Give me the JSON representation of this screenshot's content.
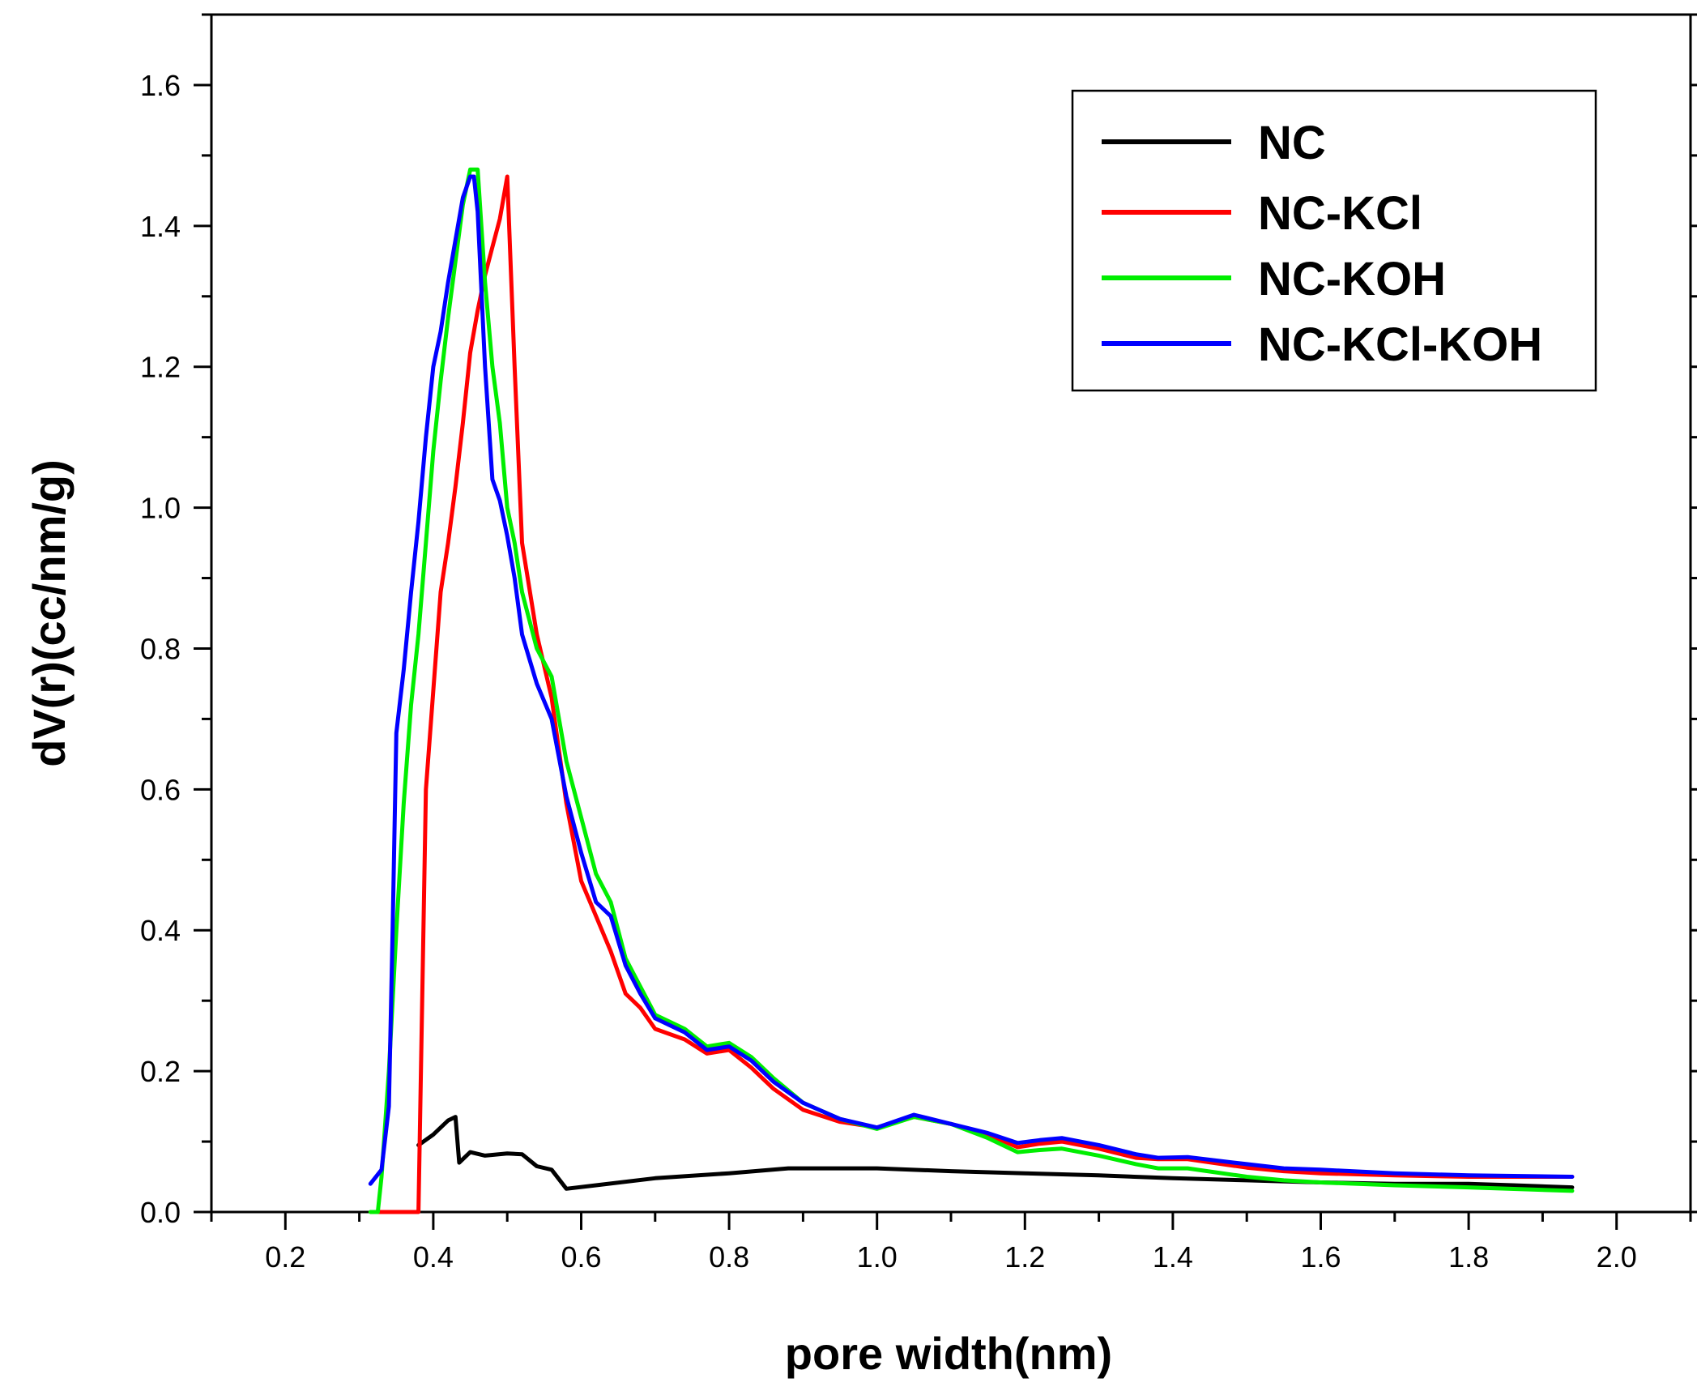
{
  "chart_data": {
    "type": "line",
    "title": "",
    "xlabel": "pore width(nm)",
    "ylabel": "dV(r)(cc/nm/g)",
    "xlim": [
      0.1,
      2.1
    ],
    "ylim": [
      0.0,
      1.7
    ],
    "x_ticks": [
      "0.2",
      "0.4",
      "0.6",
      "0.8",
      "1.0",
      "1.2",
      "1.4",
      "1.6",
      "1.8",
      "2.0"
    ],
    "y_ticks": [
      "0.0",
      "0.2",
      "0.4",
      "0.6",
      "0.8",
      "1.0",
      "1.2",
      "1.4",
      "1.6"
    ],
    "grid": false,
    "legend_position": "top-right",
    "series": [
      {
        "name": "NC",
        "color": "#000000",
        "points": [
          [
            0.38,
            0.095
          ],
          [
            0.4,
            0.11
          ],
          [
            0.42,
            0.13
          ],
          [
            0.43,
            0.135
          ],
          [
            0.435,
            0.07
          ],
          [
            0.45,
            0.085
          ],
          [
            0.47,
            0.08
          ],
          [
            0.5,
            0.083
          ],
          [
            0.52,
            0.082
          ],
          [
            0.54,
            0.065
          ],
          [
            0.56,
            0.06
          ],
          [
            0.58,
            0.033
          ],
          [
            0.62,
            0.038
          ],
          [
            0.7,
            0.048
          ],
          [
            0.8,
            0.055
          ],
          [
            0.88,
            0.062
          ],
          [
            1.0,
            0.062
          ],
          [
            1.1,
            0.058
          ],
          [
            1.2,
            0.055
          ],
          [
            1.3,
            0.052
          ],
          [
            1.4,
            0.048
          ],
          [
            1.5,
            0.045
          ],
          [
            1.6,
            0.042
          ],
          [
            1.7,
            0.04
          ],
          [
            1.8,
            0.04
          ],
          [
            1.86,
            0.038
          ],
          [
            1.94,
            0.035
          ]
        ]
      },
      {
        "name": "NC-KCl",
        "color": "#ff0000",
        "points": [
          [
            0.32,
            0.0
          ],
          [
            0.378,
            0.0
          ],
          [
            0.38,
            0.0
          ],
          [
            0.385,
            0.3
          ],
          [
            0.39,
            0.6
          ],
          [
            0.4,
            0.74
          ],
          [
            0.41,
            0.88
          ],
          [
            0.42,
            0.95
          ],
          [
            0.43,
            1.03
          ],
          [
            0.44,
            1.12
          ],
          [
            0.45,
            1.22
          ],
          [
            0.46,
            1.28
          ],
          [
            0.47,
            1.33
          ],
          [
            0.48,
            1.37
          ],
          [
            0.49,
            1.41
          ],
          [
            0.5,
            1.47
          ],
          [
            0.51,
            1.2
          ],
          [
            0.52,
            0.95
          ],
          [
            0.54,
            0.82
          ],
          [
            0.56,
            0.73
          ],
          [
            0.58,
            0.58
          ],
          [
            0.6,
            0.47
          ],
          [
            0.62,
            0.42
          ],
          [
            0.64,
            0.37
          ],
          [
            0.66,
            0.31
          ],
          [
            0.68,
            0.29
          ],
          [
            0.7,
            0.26
          ],
          [
            0.74,
            0.245
          ],
          [
            0.77,
            0.225
          ],
          [
            0.8,
            0.23
          ],
          [
            0.83,
            0.205
          ],
          [
            0.86,
            0.175
          ],
          [
            0.9,
            0.145
          ],
          [
            0.95,
            0.128
          ],
          [
            1.0,
            0.12
          ],
          [
            1.05,
            0.135
          ],
          [
            1.1,
            0.125
          ],
          [
            1.15,
            0.11
          ],
          [
            1.19,
            0.092
          ],
          [
            1.22,
            0.097
          ],
          [
            1.25,
            0.1
          ],
          [
            1.3,
            0.09
          ],
          [
            1.35,
            0.077
          ],
          [
            1.38,
            0.075
          ],
          [
            1.42,
            0.075
          ],
          [
            1.5,
            0.063
          ],
          [
            1.55,
            0.058
          ],
          [
            1.6,
            0.055
          ],
          [
            1.7,
            0.052
          ],
          [
            1.8,
            0.05
          ],
          [
            1.94,
            0.05
          ]
        ]
      },
      {
        "name": "NC-KOH",
        "color": "#00ee00",
        "points": [
          [
            0.315,
            0.0
          ],
          [
            0.325,
            0.0
          ],
          [
            0.33,
            0.05
          ],
          [
            0.34,
            0.2
          ],
          [
            0.35,
            0.4
          ],
          [
            0.36,
            0.58
          ],
          [
            0.37,
            0.72
          ],
          [
            0.38,
            0.82
          ],
          [
            0.39,
            0.95
          ],
          [
            0.4,
            1.08
          ],
          [
            0.41,
            1.18
          ],
          [
            0.42,
            1.27
          ],
          [
            0.43,
            1.35
          ],
          [
            0.44,
            1.43
          ],
          [
            0.45,
            1.48
          ],
          [
            0.46,
            1.48
          ],
          [
            0.47,
            1.32
          ],
          [
            0.48,
            1.2
          ],
          [
            0.49,
            1.12
          ],
          [
            0.5,
            1.0
          ],
          [
            0.51,
            0.95
          ],
          [
            0.52,
            0.88
          ],
          [
            0.54,
            0.8
          ],
          [
            0.56,
            0.76
          ],
          [
            0.58,
            0.64
          ],
          [
            0.6,
            0.56
          ],
          [
            0.62,
            0.48
          ],
          [
            0.64,
            0.44
          ],
          [
            0.66,
            0.36
          ],
          [
            0.68,
            0.32
          ],
          [
            0.7,
            0.28
          ],
          [
            0.74,
            0.26
          ],
          [
            0.77,
            0.235
          ],
          [
            0.8,
            0.24
          ],
          [
            0.83,
            0.22
          ],
          [
            0.86,
            0.19
          ],
          [
            0.9,
            0.155
          ],
          [
            0.95,
            0.132
          ],
          [
            1.0,
            0.118
          ],
          [
            1.05,
            0.135
          ],
          [
            1.1,
            0.125
          ],
          [
            1.15,
            0.105
          ],
          [
            1.19,
            0.085
          ],
          [
            1.22,
            0.088
          ],
          [
            1.25,
            0.09
          ],
          [
            1.3,
            0.08
          ],
          [
            1.35,
            0.068
          ],
          [
            1.38,
            0.062
          ],
          [
            1.42,
            0.062
          ],
          [
            1.5,
            0.05
          ],
          [
            1.55,
            0.045
          ],
          [
            1.6,
            0.042
          ],
          [
            1.7,
            0.038
          ],
          [
            1.8,
            0.035
          ],
          [
            1.94,
            0.03
          ]
        ]
      },
      {
        "name": "NC-KCl-KOH",
        "color": "#0000ff",
        "points": [
          [
            0.315,
            0.04
          ],
          [
            0.33,
            0.06
          ],
          [
            0.34,
            0.15
          ],
          [
            0.345,
            0.4
          ],
          [
            0.35,
            0.68
          ],
          [
            0.36,
            0.77
          ],
          [
            0.37,
            0.88
          ],
          [
            0.38,
            0.98
          ],
          [
            0.39,
            1.1
          ],
          [
            0.4,
            1.2
          ],
          [
            0.41,
            1.25
          ],
          [
            0.42,
            1.32
          ],
          [
            0.43,
            1.38
          ],
          [
            0.44,
            1.44
          ],
          [
            0.45,
            1.47
          ],
          [
            0.455,
            1.47
          ],
          [
            0.46,
            1.42
          ],
          [
            0.47,
            1.2
          ],
          [
            0.48,
            1.04
          ],
          [
            0.49,
            1.01
          ],
          [
            0.5,
            0.96
          ],
          [
            0.51,
            0.9
          ],
          [
            0.52,
            0.82
          ],
          [
            0.54,
            0.75
          ],
          [
            0.56,
            0.7
          ],
          [
            0.58,
            0.59
          ],
          [
            0.6,
            0.51
          ],
          [
            0.62,
            0.44
          ],
          [
            0.64,
            0.42
          ],
          [
            0.66,
            0.35
          ],
          [
            0.68,
            0.31
          ],
          [
            0.7,
            0.275
          ],
          [
            0.74,
            0.255
          ],
          [
            0.77,
            0.23
          ],
          [
            0.8,
            0.235
          ],
          [
            0.83,
            0.215
          ],
          [
            0.86,
            0.185
          ],
          [
            0.9,
            0.155
          ],
          [
            0.95,
            0.132
          ],
          [
            1.0,
            0.12
          ],
          [
            1.05,
            0.138
          ],
          [
            1.1,
            0.125
          ],
          [
            1.15,
            0.112
          ],
          [
            1.19,
            0.098
          ],
          [
            1.22,
            0.102
          ],
          [
            1.25,
            0.105
          ],
          [
            1.3,
            0.095
          ],
          [
            1.35,
            0.082
          ],
          [
            1.38,
            0.077
          ],
          [
            1.42,
            0.078
          ],
          [
            1.5,
            0.068
          ],
          [
            1.55,
            0.062
          ],
          [
            1.6,
            0.06
          ],
          [
            1.7,
            0.055
          ],
          [
            1.8,
            0.052
          ],
          [
            1.94,
            0.05
          ]
        ]
      }
    ]
  }
}
